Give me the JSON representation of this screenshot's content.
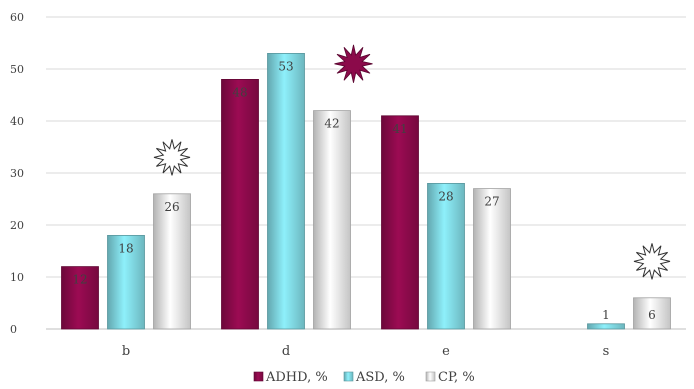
{
  "chart_data": {
    "type": "bar",
    "categories": [
      "b",
      "d",
      "e",
      "s"
    ],
    "series": [
      {
        "name": "ADHD, %",
        "color": "#8b0a4a",
        "values": [
          12,
          48,
          41,
          null
        ],
        "labels": [
          "12",
          "48",
          "41",
          ""
        ]
      },
      {
        "name": "ASD, %",
        "color": "#7fd6e0",
        "values": [
          18,
          53,
          28,
          1
        ],
        "labels": [
          "18",
          "53",
          "28",
          "1"
        ]
      },
      {
        "name": "CP, %",
        "color": "#e6e6e6",
        "values": [
          26,
          42,
          27,
          6
        ],
        "labels": [
          "26",
          "42",
          "27",
          "6"
        ]
      }
    ],
    "ylim": [
      0,
      60
    ],
    "yticks": [
      "0",
      "10",
      "20",
      "30",
      "40",
      "50",
      "60"
    ],
    "grid": true,
    "legend_position": "bottom",
    "annotations": [
      {
        "type": "burst-outline",
        "category": "b",
        "value": 33
      },
      {
        "type": "burst-filled",
        "category": "e",
        "value": 51,
        "color": "#8b0a4a"
      },
      {
        "type": "burst-outline",
        "category": "s",
        "value": 13
      }
    ]
  }
}
